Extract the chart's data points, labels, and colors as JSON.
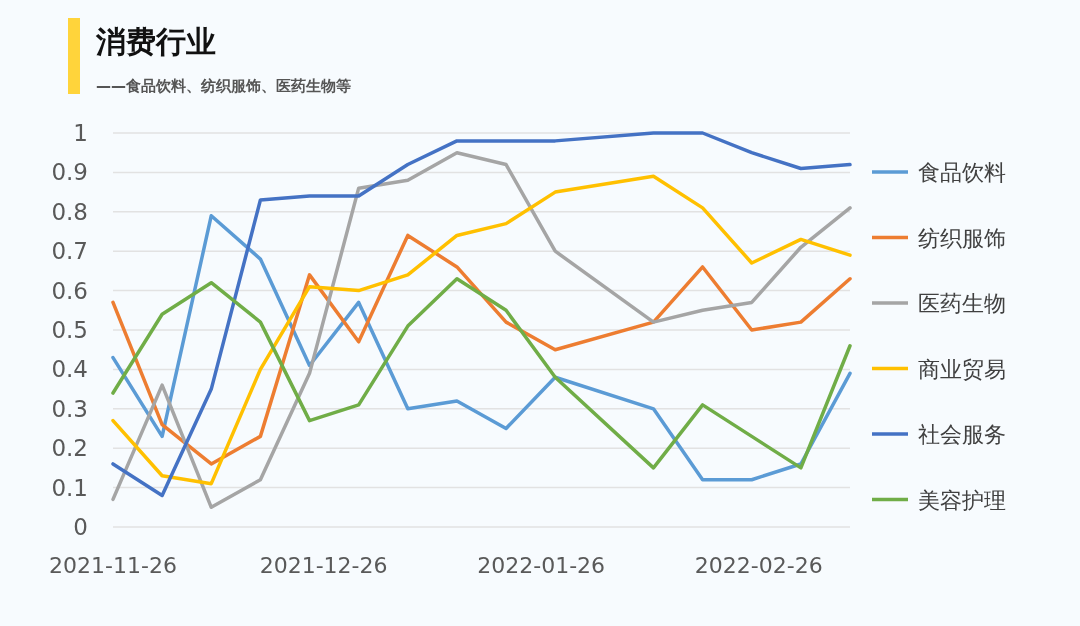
{
  "chart_data": {
    "type": "line",
    "title": "消费行业",
    "subtitle": "——食品饮料、纺织服饰、医药生物等",
    "x": [
      "2021-11-26",
      "2021-12-03",
      "2021-12-10",
      "2021-12-17",
      "2021-12-24",
      "2021-12-31",
      "2022-01-07",
      "2022-01-14",
      "2022-01-21",
      "2022-01-28",
      "2022-02-11",
      "2022-02-18",
      "2022-02-25",
      "2022-03-04",
      "2022-03-11"
    ],
    "series": [
      {
        "name": "食品饮料",
        "color": "#5b9bd5",
        "values": [
          0.43,
          0.23,
          0.79,
          0.68,
          0.41,
          0.57,
          0.3,
          0.32,
          0.25,
          0.38,
          0.3,
          0.12,
          0.12,
          0.16,
          0.39
        ]
      },
      {
        "name": "纺织服饰",
        "color": "#ed7d31",
        "values": [
          0.57,
          0.26,
          0.16,
          0.23,
          0.64,
          0.47,
          0.74,
          0.66,
          0.52,
          0.45,
          0.52,
          0.66,
          0.5,
          0.52,
          0.63
        ]
      },
      {
        "name": "医药生物",
        "color": "#a5a5a5",
        "values": [
          0.07,
          0.36,
          0.05,
          0.12,
          0.39,
          0.86,
          0.88,
          0.95,
          0.92,
          0.7,
          0.52,
          0.55,
          0.57,
          0.71,
          0.81
        ]
      },
      {
        "name": "商业贸易",
        "color": "#ffc000",
        "values": [
          0.27,
          0.13,
          0.11,
          0.4,
          0.61,
          0.6,
          0.64,
          0.74,
          0.77,
          0.85,
          0.89,
          0.81,
          0.67,
          0.73,
          0.69
        ]
      },
      {
        "name": "社会服务",
        "color": "#4472c4",
        "values": [
          0.16,
          0.08,
          0.35,
          0.83,
          0.84,
          0.84,
          0.92,
          0.98,
          0.98,
          0.98,
          1.0,
          1.0,
          0.95,
          0.91,
          0.92
        ]
      },
      {
        "name": "美容护理",
        "color": "#70ad47",
        "values": [
          0.34,
          0.54,
          0.62,
          0.52,
          0.27,
          0.31,
          0.51,
          0.63,
          0.55,
          0.38,
          0.15,
          0.31,
          0.23,
          0.15,
          0.46
        ]
      }
    ],
    "xlim": [
      "2021-11-26",
      "2022-03-11"
    ],
    "xticks": [
      "2021-11-26",
      "2021-12-26",
      "2022-01-26",
      "2022-02-26"
    ],
    "ylim": [
      0,
      1
    ],
    "yticks": [
      0,
      0.1,
      0.2,
      0.3,
      0.4,
      0.5,
      0.6,
      0.7,
      0.8,
      0.9,
      1
    ],
    "grid": "y",
    "legend": "right",
    "marker": "none",
    "line_style": "solid"
  }
}
